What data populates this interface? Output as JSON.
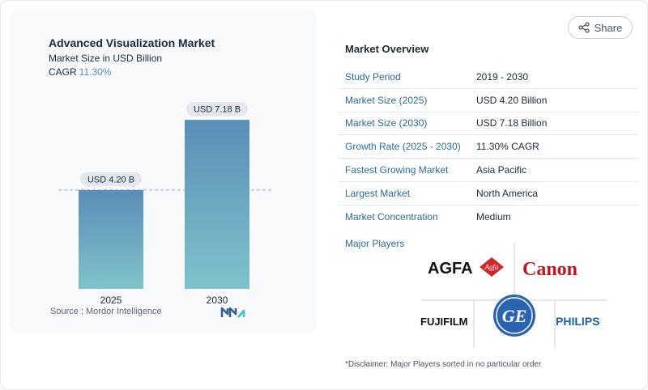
{
  "share": {
    "label": "Share",
    "icon": "share-icon"
  },
  "chart": {
    "title": "Advanced Visualization Market",
    "subtitle": "Market Size in USD Billion",
    "cagr_label": "CAGR",
    "cagr_value": "11.30%",
    "source": "Source :  Mordor Intelligence"
  },
  "chart_data": {
    "type": "bar",
    "categories": [
      "2025",
      "2030"
    ],
    "values": [
      4.2,
      7.18
    ],
    "data_labels": [
      "USD 4.20 B",
      "USD 7.18 B"
    ],
    "unit": "USD Billion",
    "ylim": [
      0,
      8.8
    ],
    "grid": false,
    "reference_line": 4.2,
    "colors": {
      "bar_top": "#5b8db6",
      "bar_bottom": "#7fc2cb"
    }
  },
  "overview": {
    "title": "Market Overview",
    "rows": [
      {
        "label": "Study Period",
        "value": "2019 - 2030"
      },
      {
        "label": "Market Size (2025)",
        "value": "USD 4.20 Billion"
      },
      {
        "label": "Market Size (2030)",
        "value": "USD 7.18 Billion"
      },
      {
        "label": "Growth Rate (2025 - 2030)",
        "value": "11.30% CAGR"
      },
      {
        "label": "Fastest Growing Market",
        "value": "Asia Pacific"
      },
      {
        "label": "Largest Market",
        "value": "North America"
      },
      {
        "label": "Market Concentration",
        "value": "Medium"
      }
    ]
  },
  "players": {
    "title": "Major Players",
    "logos": {
      "agfa": "AGFA",
      "agfa_badge": "Agfa",
      "canon": "Canon",
      "fujifilm": "FUJIFILM",
      "ge": "GE",
      "philips": "PHILIPS"
    },
    "disclaimer": "*Disclaimer: Major Players sorted in no particular order"
  }
}
